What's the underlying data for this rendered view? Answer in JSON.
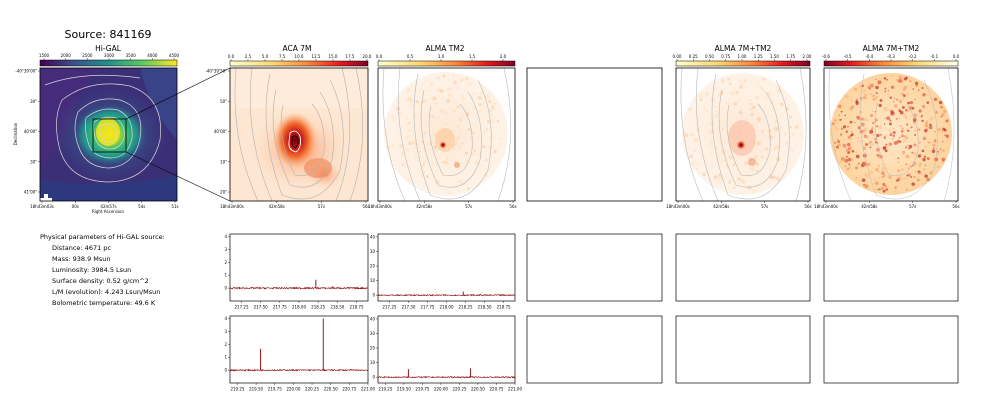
{
  "figure": {
    "title": "Source: 841169",
    "panel_titles": [
      "Hi-GAL",
      "ACA 7M",
      "ALMA TM2",
      "",
      "ALMA 7M+TM2",
      "ALMA 7M+TM2"
    ]
  },
  "colorbars": {
    "higal": [
      "1500",
      "2000",
      "2500",
      "3000",
      "3500",
      "4000",
      "4500"
    ],
    "aca": [
      "0.0",
      "2.5",
      "5.0",
      "7.5",
      "10.0",
      "12.5",
      "15.0",
      "17.5",
      "20.0"
    ],
    "tm2": [
      "0.0",
      "0.5",
      "1.0",
      "1.5",
      "2.0"
    ],
    "merged": [
      "0.00",
      "0.25",
      "0.50",
      "0.75",
      "1.00",
      "1.25",
      "1.50",
      "1.75",
      "2.00"
    ],
    "residual": [
      "-0.6",
      "-0.5",
      "-0.4",
      "-0.3",
      "-0.2",
      "-0.1",
      "0.0"
    ]
  },
  "axes": {
    "higal_dec_ticks": [
      "-40°39'00\"",
      "30\"",
      "40'00\"",
      "30\"",
      "41'00\""
    ],
    "higal_ra_ticks": [
      "18h43m03s",
      "00s",
      "42m57s",
      "54s",
      "51s"
    ],
    "higal_xlabel": "Right Ascension",
    "higal_ylabel": "Declination",
    "zoom_dec_ticks": [
      "-40°39'50\"",
      "50\"",
      "40'00\"",
      "10\"",
      "20\""
    ],
    "zoom_ra_ticks": [
      "18h43m00s",
      "42m58s",
      "57s",
      "56s"
    ]
  },
  "params": {
    "heading": "Physical parameters of Hi-GAL source:",
    "lines": [
      "Distance: 4671 pc",
      "Mass: 938.9 Msun",
      "Luminosity: 3984.5 Lsun",
      "Surface density: 0.52 g/cm^2",
      "L/M (evolution): 4.243 Lsun/Msun",
      "Bolometric temperature: 49.6 K"
    ]
  },
  "colors": {
    "spectrum": "#8b0000",
    "contour": "#a0a0a0",
    "frame": "#000000"
  },
  "chart_data": [
    {
      "type": "line",
      "panel": "ACA 7M spectrum, upper window",
      "xlim": [
        217.1,
        218.9
      ],
      "ylim": [
        -1,
        4.2
      ],
      "xticks": [
        "217.25",
        "217.50",
        "217.75",
        "218.00",
        "218.25",
        "218.50",
        "218.75"
      ],
      "yticks": [
        "0",
        "1",
        "2",
        "3",
        "4"
      ],
      "lines": [
        {
          "x": 218.22,
          "y": 0.65
        },
        {
          "x": 218.44,
          "y": 0.15
        }
      ],
      "noise": 0.06
    },
    {
      "type": "line",
      "panel": "ALMA TM2 spectrum, upper window",
      "xlim": [
        217.1,
        218.9
      ],
      "ylim": [
        -4,
        42
      ],
      "xticks": [
        "217.25",
        "217.50",
        "217.75",
        "218.00",
        "218.25",
        "218.50",
        "218.75"
      ],
      "yticks": [
        "0",
        "10",
        "20",
        "30",
        "40"
      ],
      "lines": [
        {
          "x": 218.22,
          "y": 2.5
        },
        {
          "x": 218.44,
          "y": 1.0
        }
      ],
      "noise": 0.4
    },
    {
      "type": "line",
      "panel": "ACA 7M spectrum, lower window",
      "xlim": [
        219.15,
        221.0
      ],
      "ylim": [
        -1,
        4.2
      ],
      "xticks": [
        "219.25",
        "219.50",
        "219.75",
        "220.00",
        "220.25",
        "220.50",
        "220.75",
        "221.00"
      ],
      "yticks": [
        "0",
        "1",
        "2",
        "3",
        "4"
      ],
      "lines": [
        {
          "x": 219.56,
          "y": 1.65
        },
        {
          "x": 220.4,
          "y": 4.0
        }
      ],
      "noise": 0.05
    },
    {
      "type": "line",
      "panel": "ALMA TM2 spectrum, lower window",
      "xlim": [
        219.15,
        221.0
      ],
      "ylim": [
        -4,
        42
      ],
      "xticks": [
        "219.25",
        "219.50",
        "219.75",
        "220.00",
        "220.25",
        "220.50",
        "220.75",
        "221.00"
      ],
      "yticks": [
        "0",
        "10",
        "20",
        "30",
        "40"
      ],
      "lines": [
        {
          "x": 219.56,
          "y": 5.5
        },
        {
          "x": 220.4,
          "y": 6.0
        }
      ],
      "noise": 0.4
    }
  ]
}
